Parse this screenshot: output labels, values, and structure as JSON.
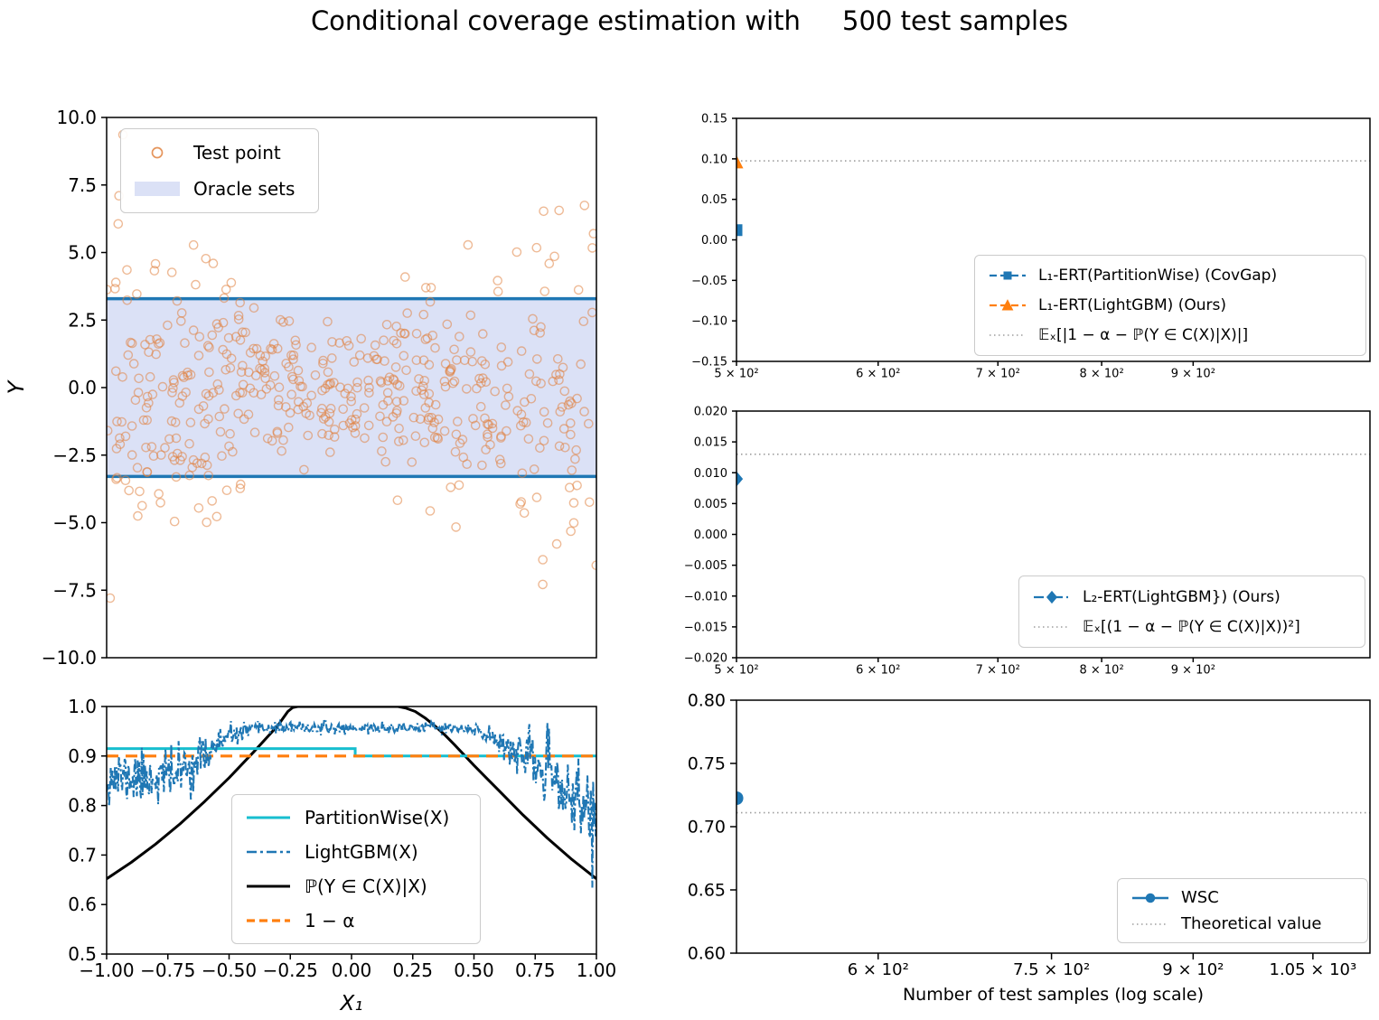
{
  "title": "Conditional coverage estimation with     500 test samples",
  "colors": {
    "blue": "#1f77b4",
    "orange": "#ff7f0e",
    "cyan": "#17becf",
    "black": "#000000",
    "ref_gray": "#9e9e9e",
    "band_fill": "#dbe1f6",
    "scatter_edge": "#e0823f",
    "spine": "#000000"
  },
  "chart_data": [
    {
      "id": "oracle_scatter",
      "type": "scatter",
      "ylabel": "Y",
      "xlim": [
        -1,
        1
      ],
      "ylim": [
        -10,
        10
      ],
      "yticks": [
        {
          "v": 10.0,
          "label": "10.0"
        },
        {
          "v": 7.5,
          "label": "7.5"
        },
        {
          "v": 5.0,
          "label": "5.0"
        },
        {
          "v": 2.5,
          "label": "2.5"
        },
        {
          "v": 0.0,
          "label": "0.0"
        },
        {
          "v": -2.5,
          "label": "−2.5"
        },
        {
          "v": -5.0,
          "label": "−5.0"
        },
        {
          "v": -7.5,
          "label": "−7.5"
        },
        {
          "v": -10.0,
          "label": "−10.0"
        }
      ],
      "oracle_band": {
        "low": -3.29,
        "high": 3.29
      },
      "scatter_gen": {
        "count": 500,
        "seed": 5,
        "sigma_base": 1.3,
        "sigma_scale": 2.3,
        "sigma_power": 1.8,
        "marker_radius": 4.6
      },
      "legend": {
        "test_point": "Test point",
        "oracle_sets": "Oracle sets"
      }
    },
    {
      "id": "coverage_curves",
      "type": "line",
      "xlabel": "X₁",
      "xlim": [
        -1,
        1
      ],
      "ylim": [
        0.5,
        1.0
      ],
      "xticks": [
        {
          "v": -1.0,
          "label": "−1.00"
        },
        {
          "v": -0.75,
          "label": "−0.75"
        },
        {
          "v": -0.5,
          "label": "−0.50"
        },
        {
          "v": -0.25,
          "label": "−0.25"
        },
        {
          "v": 0.0,
          "label": "0.00"
        },
        {
          "v": 0.25,
          "label": "0.25"
        },
        {
          "v": 0.5,
          "label": "0.50"
        },
        {
          "v": 0.75,
          "label": "0.75"
        },
        {
          "v": 1.0,
          "label": "1.00"
        }
      ],
      "yticks": [
        {
          "v": 1.0,
          "label": "1.0"
        },
        {
          "v": 0.9,
          "label": "0.9"
        },
        {
          "v": 0.8,
          "label": "0.8"
        },
        {
          "v": 0.7,
          "label": "0.7"
        },
        {
          "v": 0.6,
          "label": "0.6"
        },
        {
          "v": 0.5,
          "label": "0.5"
        }
      ],
      "series": {
        "partitionwise": {
          "label": "PartitionWise(X)",
          "points": [
            [
              -1,
              0.915
            ],
            [
              0.015,
              0.915
            ],
            [
              0.015,
              0.9
            ],
            [
              1,
              0.9
            ]
          ]
        },
        "lightgbm": {
          "label": "LightGBM(X)",
          "gen": {
            "n": 600,
            "seed": 11,
            "base": [
              [
                -1,
                0.858
              ],
              [
                -0.85,
                0.856
              ],
              [
                -0.75,
                0.86
              ],
              [
                -0.7,
                0.868
              ],
              [
                -0.65,
                0.882
              ],
              [
                -0.6,
                0.902
              ],
              [
                -0.55,
                0.922
              ],
              [
                -0.5,
                0.938
              ],
              [
                -0.45,
                0.948
              ],
              [
                -0.4,
                0.954
              ],
              [
                -0.3,
                0.957
              ],
              [
                0,
                0.956
              ],
              [
                0.3,
                0.957
              ],
              [
                0.4,
                0.956
              ],
              [
                0.5,
                0.951
              ],
              [
                0.55,
                0.944
              ],
              [
                0.6,
                0.932
              ],
              [
                0.65,
                0.917
              ],
              [
                0.7,
                0.901
              ],
              [
                0.75,
                0.884
              ],
              [
                0.8,
                0.863
              ],
              [
                0.85,
                0.84
              ],
              [
                0.9,
                0.816
              ],
              [
                0.95,
                0.796
              ],
              [
                1,
                0.782
              ]
            ],
            "amp": [
              [
                -1,
                0.027
              ],
              [
                -0.7,
                0.027
              ],
              [
                -0.6,
                0.02
              ],
              [
                -0.5,
                0.012
              ],
              [
                -0.4,
                0.007
              ],
              [
                -0.35,
                0.0055
              ],
              [
                0.35,
                0.0055
              ],
              [
                0.45,
                0.007
              ],
              [
                0.55,
                0.011
              ],
              [
                0.65,
                0.018
              ],
              [
                0.75,
                0.026
              ],
              [
                0.85,
                0.034
              ],
              [
                0.95,
                0.042
              ],
              [
                1,
                0.045
              ]
            ]
          }
        },
        "oracle_prob": {
          "label": "ℙ(Y ∈ C(X)|X)",
          "points": [
            [
              -1,
              0.652
            ],
            [
              -0.9,
              0.685
            ],
            [
              -0.8,
              0.722
            ],
            [
              -0.7,
              0.763
            ],
            [
              -0.6,
              0.808
            ],
            [
              -0.55,
              0.832
            ],
            [
              -0.5,
              0.856
            ],
            [
              -0.45,
              0.882
            ],
            [
              -0.4,
              0.908
            ],
            [
              -0.35,
              0.935
            ],
            [
              -0.3,
              0.962
            ],
            [
              -0.28,
              0.976
            ],
            [
              -0.26,
              0.99
            ],
            [
              -0.24,
              0.998
            ],
            [
              -0.22,
              1.0
            ],
            [
              0.19,
              1.0
            ],
            [
              0.22,
              0.997
            ],
            [
              0.26,
              0.99
            ],
            [
              0.3,
              0.977
            ],
            [
              0.34,
              0.961
            ],
            [
              0.38,
              0.943
            ],
            [
              0.42,
              0.923
            ],
            [
              0.46,
              0.902
            ],
            [
              0.5,
              0.881
            ],
            [
              0.55,
              0.856
            ],
            [
              0.6,
              0.831
            ],
            [
              0.65,
              0.806
            ],
            [
              0.7,
              0.781
            ],
            [
              0.8,
              0.734
            ],
            [
              0.9,
              0.691
            ],
            [
              1,
              0.652
            ]
          ]
        },
        "alpha_line": {
          "label": "1 − α",
          "y": 0.9
        }
      }
    },
    {
      "id": "l1_ert",
      "type": "scatter",
      "xscale": "log",
      "xlim": [
        500,
        1130
      ],
      "ylim": [
        -0.15,
        0.15
      ],
      "xticks": [
        {
          "v": 500,
          "label": "5 × 10²"
        },
        {
          "v": 600,
          "label": "6 × 10²"
        },
        {
          "v": 700,
          "label": "7 × 10²"
        },
        {
          "v": 800,
          "label": "8 × 10²"
        },
        {
          "v": 900,
          "label": "9 × 10²"
        }
      ],
      "yticks": [
        {
          "v": 0.15,
          "label": "0.15"
        },
        {
          "v": 0.1,
          "label": "0.10"
        },
        {
          "v": 0.05,
          "label": "0.05"
        },
        {
          "v": 0.0,
          "label": "0.00"
        },
        {
          "v": -0.05,
          "label": "−0.05"
        },
        {
          "v": -0.1,
          "label": "−0.10"
        },
        {
          "v": -0.15,
          "label": "−0.15"
        }
      ],
      "reference_line": {
        "y": 0.0975,
        "label": "𝔼ₓ[|1 − α − ℙ(Y ∈ C(X)|X)|]"
      },
      "points": [
        {
          "label": "L₁-ERT(PartitionWise) (CovGap)",
          "marker": "square",
          "color": "#1f77b4",
          "x": 500,
          "y": 0.012
        },
        {
          "label": "L₁-ERT(LightGBM) (Ours)",
          "marker": "triangle",
          "color": "#ff7f0e",
          "x": 500,
          "y": 0.0955
        }
      ]
    },
    {
      "id": "l2_ert",
      "type": "scatter",
      "xscale": "log",
      "xlim": [
        500,
        1130
      ],
      "ylim": [
        -0.02,
        0.02
      ],
      "xticks": [
        {
          "v": 500,
          "label": "5 × 10²"
        },
        {
          "v": 600,
          "label": "6 × 10²"
        },
        {
          "v": 700,
          "label": "7 × 10²"
        },
        {
          "v": 800,
          "label": "8 × 10²"
        },
        {
          "v": 900,
          "label": "9 × 10²"
        }
      ],
      "yticks": [
        {
          "v": 0.02,
          "label": "0.020"
        },
        {
          "v": 0.015,
          "label": "0.015"
        },
        {
          "v": 0.01,
          "label": "0.010"
        },
        {
          "v": 0.005,
          "label": "0.005"
        },
        {
          "v": 0.0,
          "label": "0.000"
        },
        {
          "v": -0.005,
          "label": "−0.005"
        },
        {
          "v": -0.01,
          "label": "−0.010"
        },
        {
          "v": -0.015,
          "label": "−0.015"
        },
        {
          "v": -0.02,
          "label": "−0.020"
        }
      ],
      "reference_line": {
        "y": 0.013,
        "label": "𝔼ₓ[(1 − α − ℙ(Y ∈ C(X)|X))²]"
      },
      "points": [
        {
          "label": "L₂-ERT(LightGBM}) (Ours)",
          "marker": "diamond",
          "color": "#1f77b4",
          "x": 500,
          "y": 0.009
        }
      ]
    },
    {
      "id": "wsc",
      "type": "scatter",
      "xscale": "log",
      "xlim": [
        500,
        1130
      ],
      "ylim": [
        0.6,
        0.8
      ],
      "xlabel": "Number of test samples (log scale)",
      "xticks": [
        {
          "v": 600,
          "label": "6 × 10²"
        },
        {
          "v": 750,
          "label": "7.5 × 10²"
        },
        {
          "v": 900,
          "label": "9 × 10²"
        },
        {
          "v": 1050,
          "label": "1.05 × 10³"
        }
      ],
      "yticks": [
        {
          "v": 0.8,
          "label": "0.80"
        },
        {
          "v": 0.75,
          "label": "0.75"
        },
        {
          "v": 0.7,
          "label": "0.70"
        },
        {
          "v": 0.65,
          "label": "0.65"
        },
        {
          "v": 0.6,
          "label": "0.60"
        }
      ],
      "reference_line": {
        "y": 0.711,
        "label": "Theoretical value"
      },
      "points": [
        {
          "label": "WSC",
          "marker": "circle",
          "color": "#1f77b4",
          "x": 500,
          "y": 0.7225
        }
      ]
    }
  ],
  "swatches": {
    "test_point": {
      "marker": {
        "shape": "open-circle",
        "color": "#e0823f",
        "size": 11
      }
    },
    "oracle_sets": {
      "patch": {
        "fill": "#dbe1f6"
      }
    },
    "partitionwise": {
      "line": {
        "color": "#17becf",
        "width": 3,
        "dash": ""
      }
    },
    "lightgbm": {
      "line": {
        "color": "#1f77b4",
        "width": 2.6,
        "dash": "11 4 3 4"
      }
    },
    "oracle_prob": {
      "line": {
        "color": "#000000",
        "width": 3,
        "dash": ""
      }
    },
    "alpha_line": {
      "line": {
        "color": "#ff7f0e",
        "width": 3.2,
        "dash": "9 5"
      }
    },
    "l1_pw": {
      "line": {
        "color": "#1f77b4",
        "width": 2.2,
        "dash": "8 4"
      },
      "marker": {
        "shape": "square",
        "color": "#1f77b4",
        "size": 9
      }
    },
    "l1_lgbm": {
      "line": {
        "color": "#ff7f0e",
        "width": 2.2,
        "dash": "8 4"
      },
      "marker": {
        "shape": "triangle",
        "color": "#ff7f0e",
        "size": 11
      }
    },
    "ref_dotted": {
      "line": {
        "color": "#9e9e9e",
        "width": 1.6,
        "dash": "1.5 3.5"
      }
    },
    "l2_lgbm": {
      "line": {
        "color": "#1f77b4",
        "width": 2.2,
        "dash": "11 4 2 4"
      },
      "marker": {
        "shape": "diamond",
        "color": "#1f77b4",
        "size": 11
      }
    },
    "wsc": {
      "line": {
        "color": "#1f77b4",
        "width": 2.4,
        "dash": ""
      },
      "marker": {
        "shape": "circle",
        "color": "#1f77b4",
        "size": 9
      }
    }
  }
}
